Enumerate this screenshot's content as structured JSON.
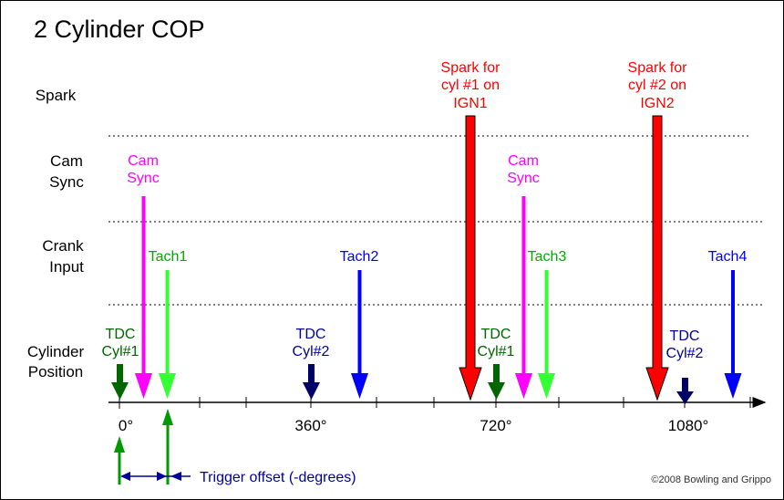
{
  "title": "2 Cylinder COP",
  "rows": {
    "spark": "Spark",
    "cam_sync": [
      "Cam",
      "Sync"
    ],
    "crank_input": [
      "Crank",
      "Input"
    ],
    "cylinder_position": [
      "Cylinder",
      "Position"
    ]
  },
  "axis_labels": [
    "0°",
    "360°",
    "720°",
    "1080°"
  ],
  "events": {
    "cam1": [
      "Cam",
      "Sync"
    ],
    "cam2": [
      "Cam",
      "Sync"
    ],
    "tach1": "Tach1",
    "tach2": "Tach2",
    "tach3": "Tach3",
    "tach4": "Tach4",
    "tdc1": [
      "TDC",
      "Cyl#1"
    ],
    "tdc2": [
      "TDC",
      "Cyl#2"
    ],
    "tdc3": [
      "TDC",
      "Cyl#1"
    ],
    "tdc4": [
      "TDC",
      "Cyl#2"
    ],
    "spark1": [
      "Spark for",
      "cyl #1 on",
      "IGN1"
    ],
    "spark2": [
      "Spark for",
      "cyl #2 on",
      "IGN2"
    ]
  },
  "trigger_offset": "Trigger offset (-degrees)",
  "copyright": "©2008 Bowling and Grippo",
  "colors": {
    "spark": "#ff0000",
    "cam": "#ff00ff",
    "tach1": "#00ff40",
    "tach2": "#0000ff",
    "tdc1": "#006600",
    "tdc2": "#000066",
    "tdc_label1": "#006600",
    "tdc_label2": "#000099",
    "offset": "#000099"
  }
}
